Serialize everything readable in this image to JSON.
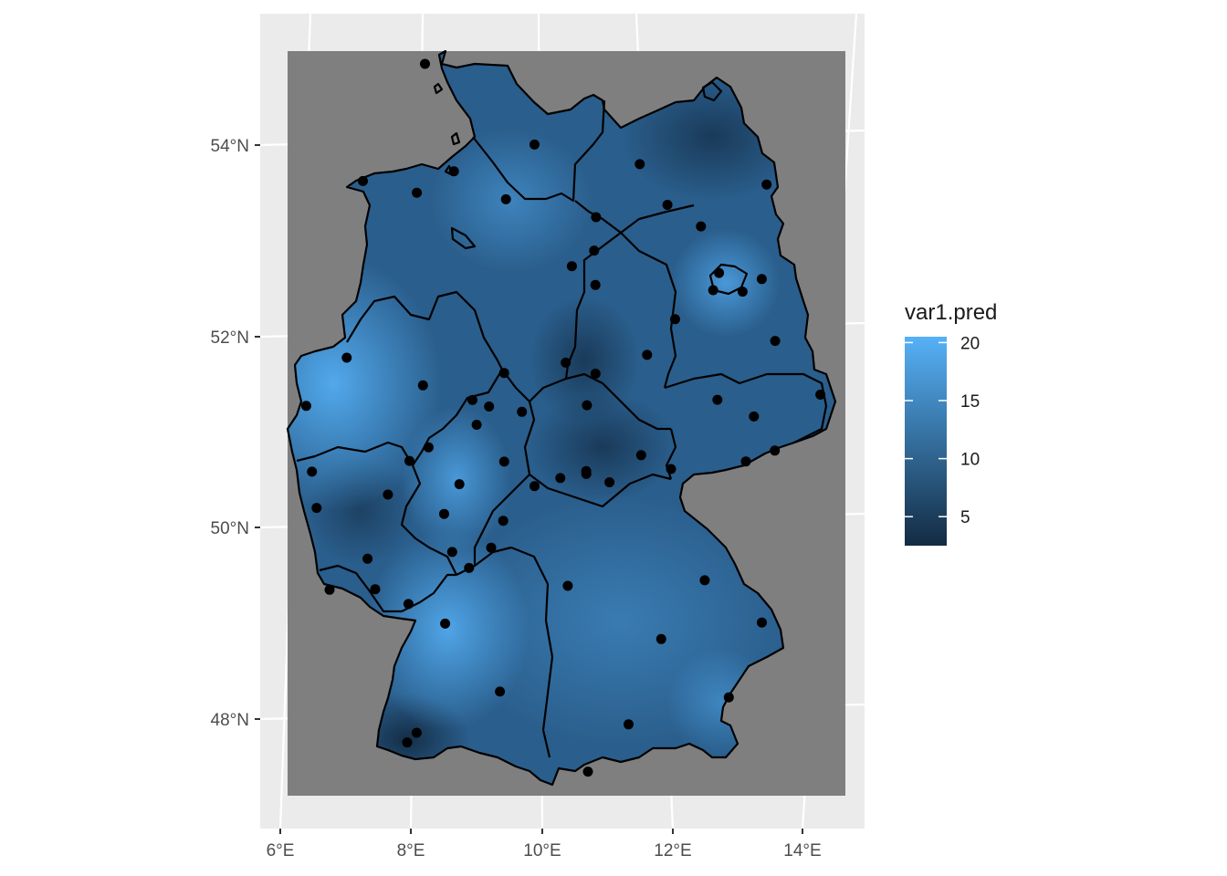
{
  "chart_data": {
    "type": "heatmap",
    "title": "",
    "xlabel": "",
    "ylabel": "",
    "x_ticks": [
      "6°E",
      "8°E",
      "10°E",
      "12°E",
      "14°E"
    ],
    "y_ticks": [
      "48°N",
      "50°N",
      "52°N",
      "54°N"
    ],
    "xlim": [
      5.95,
      14.75
    ],
    "ylim": [
      46.95,
      55.45
    ],
    "colors": {
      "panel": "#ebebeb",
      "raster_background": "#7f7f7f",
      "gridline": "#ffffff",
      "low": "#132b43",
      "high": "#56b1f7",
      "points": "#000000"
    },
    "legend": {
      "title": "var1.pred",
      "ticks": [
        "20",
        "15",
        "10",
        "5"
      ],
      "tick_values": [
        20,
        15,
        10,
        5
      ],
      "min": 2.5,
      "max": 20.5,
      "placement": "right"
    },
    "stations": [
      [
        8.42,
        54.88
      ],
      [
        10.05,
        54.02
      ],
      [
        11.65,
        53.8
      ],
      [
        13.58,
        53.57
      ],
      [
        7.4,
        53.66
      ],
      [
        8.22,
        53.53
      ],
      [
        8.8,
        53.75
      ],
      [
        9.58,
        53.45
      ],
      [
        12.05,
        53.37
      ],
      [
        10.95,
        53.25
      ],
      [
        12.55,
        53.14
      ],
      [
        10.9,
        52.9
      ],
      [
        10.55,
        52.74
      ],
      [
        10.9,
        52.54
      ],
      [
        12.8,
        52.65
      ],
      [
        12.7,
        52.47
      ],
      [
        13.15,
        52.45
      ],
      [
        13.45,
        52.58
      ],
      [
        12.1,
        52.17
      ],
      [
        13.62,
        51.93
      ],
      [
        7.05,
        51.81
      ],
      [
        11.65,
        51.8
      ],
      [
        10.4,
        51.73
      ],
      [
        10.85,
        51.61
      ],
      [
        9.45,
        51.63
      ],
      [
        6.4,
        51.31
      ],
      [
        8.2,
        51.51
      ],
      [
        9.2,
        51.28
      ],
      [
        8.95,
        51.35
      ],
      [
        9.7,
        51.22
      ],
      [
        10.7,
        51.28
      ],
      [
        12.7,
        51.32
      ],
      [
        14.28,
        51.36
      ],
      [
        13.25,
        51.14
      ],
      [
        9.0,
        51.09
      ],
      [
        8.25,
        50.86
      ],
      [
        7.95,
        50.72
      ],
      [
        9.4,
        50.7
      ],
      [
        11.5,
        50.75
      ],
      [
        6.45,
        50.62
      ],
      [
        10.65,
        50.59
      ],
      [
        10.65,
        50.56
      ],
      [
        11.0,
        50.47
      ],
      [
        10.25,
        50.52
      ],
      [
        9.85,
        50.44
      ],
      [
        8.7,
        50.47
      ],
      [
        7.6,
        50.37
      ],
      [
        13.55,
        50.78
      ],
      [
        13.1,
        50.67
      ],
      [
        11.95,
        50.6
      ],
      [
        6.5,
        50.24
      ],
      [
        8.45,
        50.16
      ],
      [
        9.35,
        50.08
      ],
      [
        8.55,
        49.76
      ],
      [
        9.15,
        49.8
      ],
      [
        7.25,
        49.7
      ],
      [
        8.8,
        49.59
      ],
      [
        6.65,
        49.38
      ],
      [
        7.35,
        49.38
      ],
      [
        7.85,
        49.22
      ],
      [
        10.3,
        49.39
      ],
      [
        12.4,
        49.43
      ],
      [
        8.4,
        49.01
      ],
      [
        13.25,
        48.98
      ],
      [
        11.7,
        48.82
      ],
      [
        9.2,
        48.29
      ],
      [
        12.7,
        48.2
      ],
      [
        11.15,
        47.93
      ],
      [
        7.9,
        47.87
      ],
      [
        7.75,
        47.77
      ],
      [
        10.5,
        47.44
      ]
    ]
  }
}
